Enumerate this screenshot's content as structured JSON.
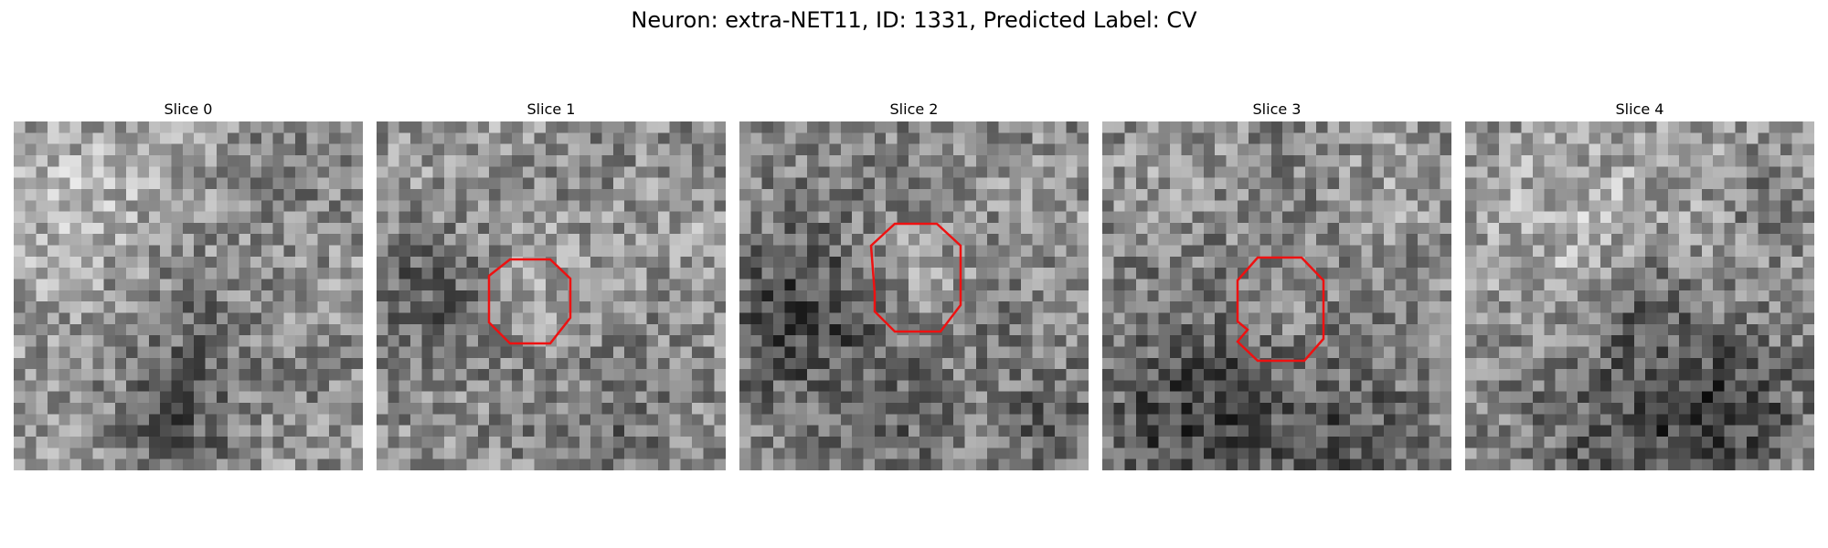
{
  "title": "Neuron: extra-NET11, ID: 1331, Predicted Label: CV",
  "contour_color": "#ee1111",
  "panels": [
    {
      "label": "Slice 0",
      "has_contour": false
    },
    {
      "label": "Slice 1",
      "has_contour": true
    },
    {
      "label": "Slice 2",
      "has_contour": true
    },
    {
      "label": "Slice 3",
      "has_contour": true
    },
    {
      "label": "Slice 4",
      "has_contour": false
    }
  ]
}
